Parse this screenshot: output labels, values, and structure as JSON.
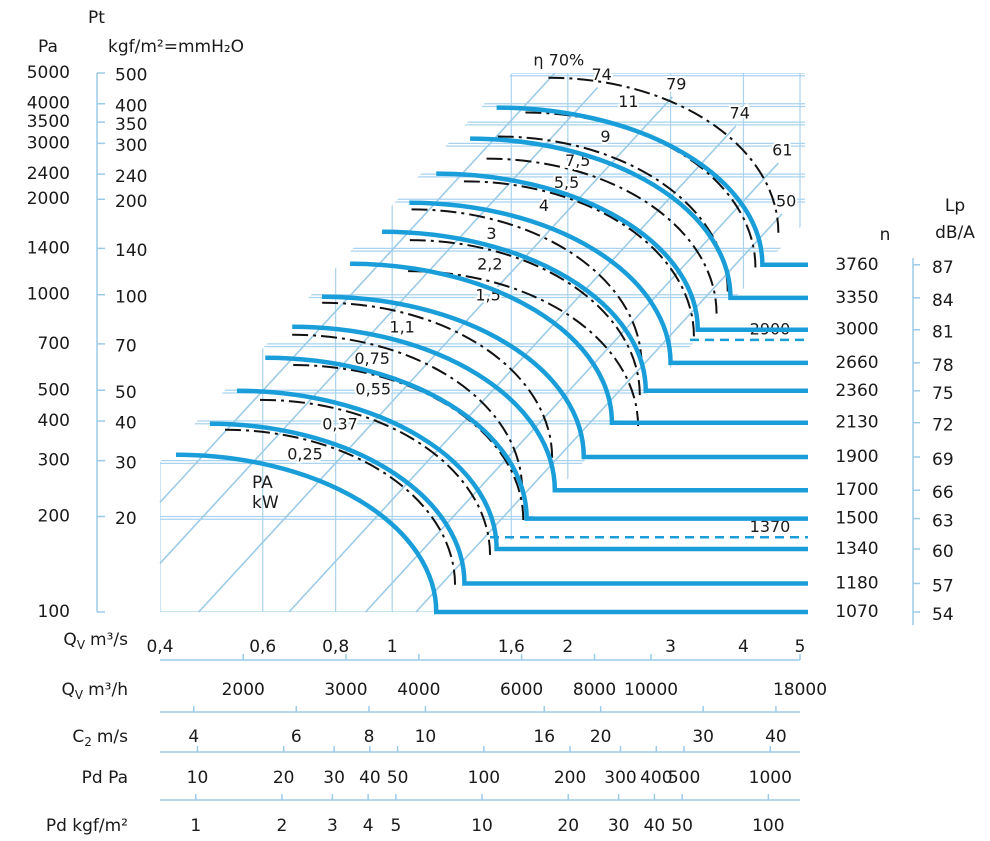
{
  "chart_data": {
    "type": "fan-curves",
    "xscale": "log",
    "yscale": "log",
    "grid": true,
    "y_axis_title": "Pt",
    "y_label": "Pa",
    "y2_label": "kgf/m²=mmH₂O",
    "x_title": {
      "text": "Q",
      "sub": "V",
      "unit": "m³/s"
    },
    "n_label": "n",
    "lp_label": [
      "Lp",
      "dB/A"
    ],
    "annotations": [
      "PA",
      "kW"
    ],
    "xlim": [
      0.4,
      5
    ],
    "xticks": [
      {
        "value": 0.4,
        "label": "0,4"
      },
      {
        "value": 0.6,
        "label": "0,6"
      },
      {
        "value": 0.8,
        "label": "0,8"
      },
      1,
      {
        "value": 1.6,
        "label": "1,6"
      },
      2,
      3,
      4,
      5
    ],
    "ylim": [
      100,
      5000
    ],
    "yticks": [
      5000,
      4000,
      3500,
      3000,
      2400,
      2000,
      1400,
      1000,
      700,
      500,
      400,
      300,
      200,
      100
    ],
    "y2lim": [
      10.2,
      510
    ],
    "y2ticks": [
      500,
      400,
      350,
      300,
      240,
      200,
      140,
      100,
      70,
      50,
      40,
      30,
      20
    ],
    "series": [
      {
        "name": "1070",
        "color": "#1a9ed9",
        "x": [
          0.426,
          1.19
        ],
        "values": [
          313,
          100
        ],
        "lp": 54
      },
      {
        "name": "1180",
        "color": "#1a9ed9",
        "x": [
          0.487,
          1.33
        ],
        "values": [
          392,
          123
        ],
        "lp": 57
      },
      {
        "name": "1340",
        "color": "#1a9ed9",
        "x": [
          0.542,
          1.51
        ],
        "values": [
          498,
          158
        ],
        "lp": 60
      },
      {
        "name": "1500",
        "color": "#1a9ed9",
        "x": [
          0.606,
          1.7
        ],
        "values": [
          633,
          197
        ],
        "lp": 63
      },
      {
        "name": "1700",
        "color": "#1a9ed9",
        "x": [
          0.674,
          1.9
        ],
        "values": [
          793,
          242
        ],
        "lp": 66
      },
      {
        "name": "1900",
        "color": "#1a9ed9",
        "x": [
          0.758,
          2.13
        ],
        "values": [
          986,
          308
        ],
        "lp": 69
      },
      {
        "name": "2130",
        "color": "#1a9ed9",
        "x": [
          0.847,
          2.38
        ],
        "values": [
          1252,
          395
        ],
        "lp": 72
      },
      {
        "name": "2360",
        "color": "#1a9ed9",
        "x": [
          0.961,
          2.72
        ],
        "values": [
          1580,
          498
        ],
        "lp": 75
      },
      {
        "name": "2660",
        "color": "#1a9ed9",
        "x": [
          1.07,
          3.0
        ],
        "values": [
          1950,
          610
        ],
        "lp": 78
      },
      {
        "name": "3000",
        "color": "#1a9ed9",
        "x": [
          1.19,
          3.34
        ],
        "values": [
          2408,
          776
        ],
        "lp": 81
      },
      {
        "name": "3350",
        "color": "#1a9ed9",
        "x": [
          1.36,
          3.8
        ],
        "values": [
          3105,
          978
        ],
        "lp": 84
      },
      {
        "name": "3760",
        "color": "#1a9ed9",
        "x": [
          1.51,
          4.31
        ],
        "values": [
          3890,
          1243
        ],
        "lp": 87
      }
    ],
    "dashed_levels": [
      {
        "label": "2900",
        "p": 721
      },
      {
        "label": "1370",
        "p": 172
      }
    ],
    "power_curves": [
      {
        "label": "0,25",
        "q": 0.709,
        "p": 313
      },
      {
        "label": "0,37",
        "q": 0.814,
        "p": 389
      },
      {
        "label": "0,55",
        "q": 0.928,
        "p": 501
      },
      {
        "label": "0,75",
        "q": 0.924,
        "p": 624
      },
      {
        "label": "1,1",
        "q": 1.04,
        "p": 787
      },
      {
        "label": "1,5",
        "q": 1.46,
        "p": 990
      },
      {
        "label": "2,2",
        "q": 1.47,
        "p": 1240
      },
      {
        "label": "3",
        "q": 1.48,
        "p": 1550
      },
      {
        "label": "4",
        "q": 1.82,
        "p": 1900
      },
      {
        "label": "5,5",
        "q": 1.99,
        "p": 2240
      },
      {
        "label": "7,5",
        "q": 2.08,
        "p": 2630
      },
      {
        "label": "9",
        "q": 2.32,
        "p": 3130
      },
      {
        "label": "11",
        "q": 2.54,
        "p": 4030
      }
    ],
    "efficiency_lines": [
      {
        "label": "η 70%",
        "q": 1.9,
        "p": 5000
      },
      {
        "label": "74",
        "q": 2.25,
        "p": 4500
      },
      {
        "label": "79",
        "q": 3.02,
        "p": 4200
      },
      {
        "label": "74",
        "q": 3.88,
        "p": 3400
      },
      {
        "label": "61",
        "q": 4.59,
        "p": 2600
      },
      {
        "label": "50",
        "q": 4.66,
        "p": 1800
      }
    ],
    "secondary_axes": [
      {
        "title": {
          "text": "Q",
          "sub": "V",
          "unit": "m³/h"
        },
        "xlim": [
          1440,
          18000
        ],
        "xticks": [
          2000,
          3000,
          4000,
          6000,
          8000,
          10000,
          18000
        ]
      },
      {
        "title": {
          "text": "C",
          "sub": "2",
          "unit": "m/s"
        },
        "xlim": [
          3.5,
          44
        ],
        "xticks": [
          4,
          6,
          8,
          10,
          16,
          20,
          30,
          40
        ]
      },
      {
        "title": {
          "text": "Pd Pa"
        },
        "xlim": [
          7.4,
          1270
        ],
        "xticks": [
          10,
          20,
          30,
          40,
          50,
          100,
          200,
          300,
          400,
          500,
          1000
        ]
      },
      {
        "title": {
          "text": "Pd kgf/m²"
        },
        "xlim": [
          0.75,
          129
        ],
        "xticks": [
          1,
          2,
          3,
          4,
          5,
          10,
          20,
          30,
          40,
          50,
          100
        ]
      }
    ]
  }
}
